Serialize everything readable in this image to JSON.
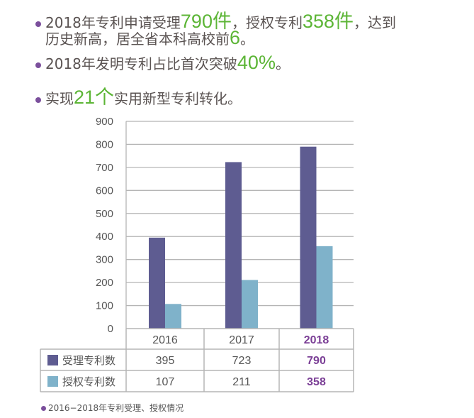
{
  "bullets": [
    {
      "parts": [
        {
          "t": "2018年专利申请受理"
        },
        {
          "t": "790件",
          "hl": true
        },
        {
          "t": "，授权专利"
        },
        {
          "t": "358件",
          "hl": true
        },
        {
          "t": "，达到"
        }
      ]
    },
    {
      "parts": [
        {
          "t": "历史新高，居全省本科高校前"
        },
        {
          "t": "6",
          "hl": true
        },
        {
          "t": "。"
        }
      ],
      "continuation": true
    },
    {
      "parts": [
        {
          "t": "2018年发明专利占比首次突破"
        },
        {
          "t": "40%",
          "hl": true
        },
        {
          "t": "。"
        }
      ]
    },
    {
      "parts": [
        {
          "t": "实现"
        },
        {
          "t": "21个",
          "hl": true
        },
        {
          "t": "实用新型专利转化。"
        }
      ]
    }
  ],
  "colors": {
    "accent_green": "#5cb536",
    "purple": "#5e5c91",
    "light_blue": "#7fb2ca",
    "highlight": "#7b3f96"
  },
  "chart_data": {
    "type": "bar",
    "categories": [
      "2016",
      "2017",
      "2018"
    ],
    "highlight_category": "2018",
    "series": [
      {
        "name": "受理专利数",
        "values": [
          395,
          723,
          790
        ],
        "color": "#5e5c91"
      },
      {
        "name": "授权专利数",
        "values": [
          107,
          211,
          358
        ],
        "color": "#7fb2ca"
      }
    ],
    "ylim": [
      0,
      900
    ],
    "yticks": [
      0,
      100,
      200,
      300,
      400,
      500,
      600,
      700,
      800,
      900
    ],
    "grid": true,
    "legend": "data-table-below",
    "caption": "2016−2018年专利受理、授权情况"
  }
}
